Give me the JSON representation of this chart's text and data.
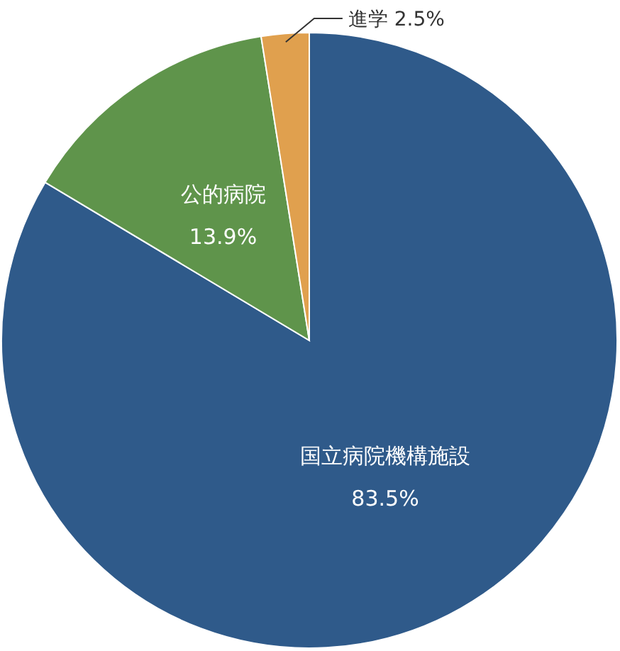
{
  "chart_data": {
    "type": "pie",
    "categories": [
      "国立病院機構施設",
      "公的病院",
      "進学"
    ],
    "values": [
      83.5,
      13.9,
      2.5
    ],
    "colors": [
      "#2f5a8a",
      "#5f944b",
      "#e0a04e"
    ],
    "value_labels": [
      "83.5%",
      "13.9%",
      "2.5%"
    ]
  }
}
